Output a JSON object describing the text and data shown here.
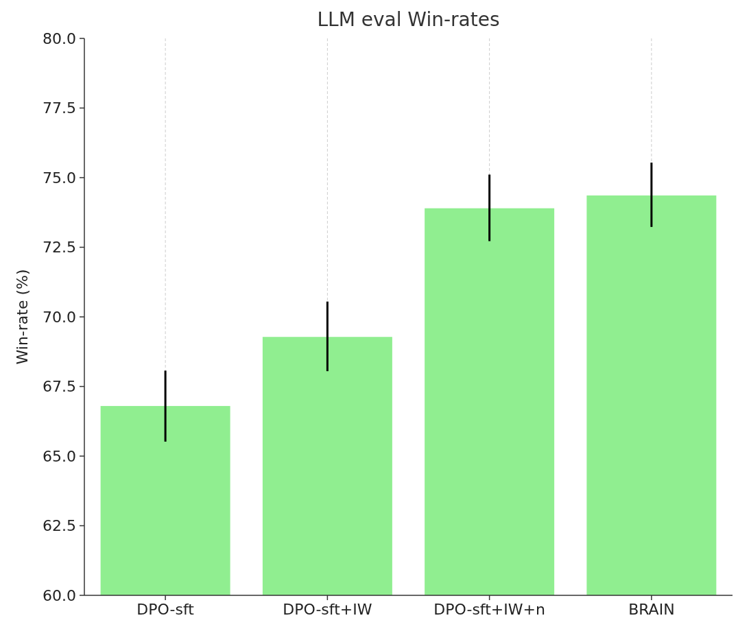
{
  "chart_data": {
    "type": "bar",
    "title": "LLM eval Win-rates",
    "ylabel": "Win-rate (%)",
    "categories": [
      "DPO-sft",
      "DPO-sft+IW",
      "DPO-sft+IW+n",
      "BRAIN"
    ],
    "values": [
      66.8,
      69.28,
      73.9,
      74.36
    ],
    "errors": [
      [
        65.52,
        68.07
      ],
      [
        68.05,
        70.55
      ],
      [
        72.72,
        75.11
      ],
      [
        73.23,
        75.54
      ]
    ],
    "color": "#90ee90",
    "ylim": [
      60,
      80
    ],
    "yticks": [
      {
        "value": 60,
        "label": "60.0"
      },
      {
        "value": 62.5,
        "label": "62.5"
      },
      {
        "value": 65,
        "label": "65.0"
      },
      {
        "value": 67.5,
        "label": "67.5"
      },
      {
        "value": 70,
        "label": "70.0"
      },
      {
        "value": 72.5,
        "label": "72.5"
      },
      {
        "value": 75,
        "label": "75.0"
      },
      {
        "value": 77.5,
        "label": "77.5"
      },
      {
        "value": 80,
        "label": "80.0"
      }
    ],
    "grid": "x"
  }
}
